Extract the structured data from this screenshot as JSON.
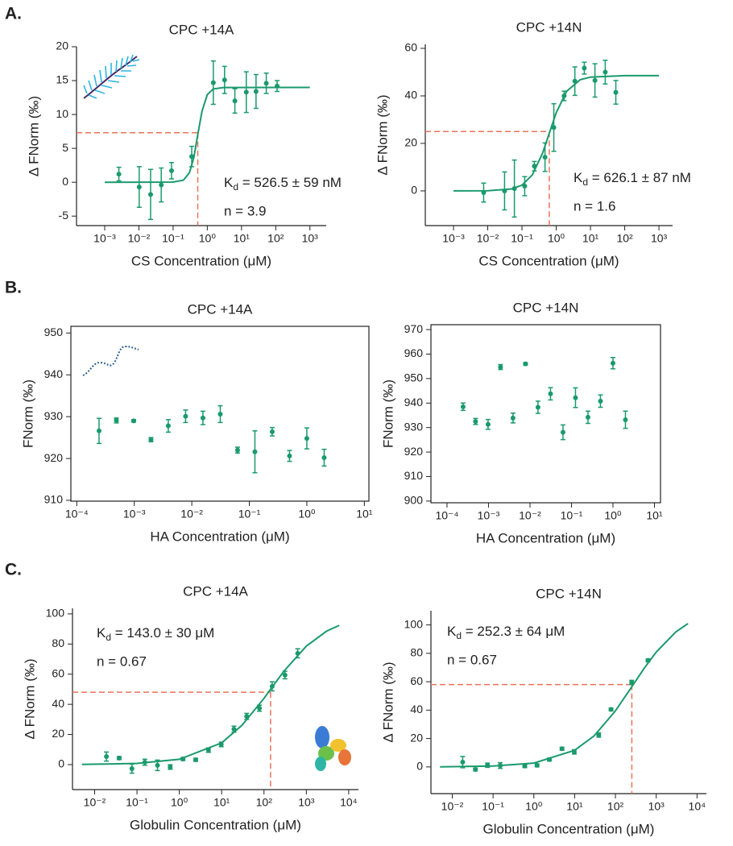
{
  "panel_labels": [
    "A.",
    "B.",
    "C."
  ],
  "chart_data": [
    {
      "type": "scatter",
      "title": "CPC +14A",
      "xlabel": "CS Concentration (μM)",
      "ylabel": "Δ FNorm (‰)",
      "color": "#1a9a6c",
      "log_x": true,
      "box": false,
      "x": [
        0.0026,
        0.0102,
        0.022,
        0.045,
        0.09,
        0.35,
        1.5,
        3.2,
        6.4,
        13.8,
        26.6,
        53,
        110
      ],
      "values": [
        1.2,
        -0.7,
        -1.8,
        -0.4,
        1.7,
        3.8,
        14.7,
        15.1,
        12,
        13.3,
        13.4,
        14.6,
        14.2
      ],
      "errors": [
        1,
        3,
        3.7,
        2.5,
        1.2,
        1.5,
        3.2,
        2,
        1.8,
        3,
        2.5,
        1.5,
        0.8
      ],
      "fit": {
        "color": "#1a9a6c",
        "x": [
          0.001,
          0.1,
          0.2,
          0.3,
          0.4,
          0.5265,
          0.7,
          1,
          1.5,
          3,
          1000
        ],
        "values": [
          0,
          0.02,
          0.31,
          1.41,
          3.57,
          7,
          10.5,
          12.94,
          13.77,
          13.98,
          14
        ]
      },
      "ref_x": 0.5265,
      "ref_y": 7.3,
      "ref_color": "#e8735a",
      "annotations": [
        {
          "text": "K",
          "sub": "d",
          "rest": " = 526.5 ± 59 nM"
        },
        "n = 3.9"
      ],
      "xlim": [
        0.00015,
        3000
      ],
      "ylim": [
        -6.4,
        20
      ],
      "xticks": [
        {
          "value": 0.001,
          "label": "10⁻³"
        },
        {
          "value": 0.01,
          "label": "10⁻²"
        },
        {
          "value": 0.1,
          "label": "10⁻¹"
        },
        {
          "value": 1,
          "label": "10⁰"
        },
        {
          "value": 10,
          "label": "10¹"
        },
        {
          "value": 100,
          "label": "10²"
        },
        {
          "value": 1000,
          "label": "10³"
        }
      ],
      "yticks": [
        -5,
        0,
        5,
        10,
        15,
        20
      ]
    },
    {
      "type": "scatter",
      "title": "CPC +14N",
      "xlabel": "CS Concentration (μM)",
      "ylabel": "Δ FNorm (‰)",
      "color": "#1a9a6c",
      "log_x": true,
      "box": false,
      "x": [
        0.0076,
        0.031,
        0.06,
        0.12,
        0.23,
        0.47,
        0.85,
        1.7,
        3.5,
        6.6,
        13.5,
        27,
        55
      ],
      "values": [
        -0.7,
        0,
        1,
        2,
        10.4,
        14.2,
        26.7,
        40,
        46.2,
        51.7,
        46.5,
        50,
        41.5
      ],
      "errors": [
        4,
        8,
        12,
        4,
        2,
        6,
        10,
        2,
        6,
        2.5,
        7,
        5,
        5
      ],
      "fit": {
        "color": "#1a9a6c",
        "x": [
          0.001,
          0.01,
          0.05,
          0.1,
          0.2,
          0.4,
          0.626,
          1,
          2,
          5,
          10,
          100,
          1000
        ],
        "values": [
          0,
          0.06,
          0.84,
          2.44,
          6.7,
          15.9,
          24.25,
          32.96,
          41.9,
          46.8,
          47.9,
          48.5,
          48.5
        ]
      },
      "ref_x": 0.626,
      "ref_y": 25,
      "ref_color": "#e8735a",
      "annotations": [
        {
          "text": "K",
          "sub": "d",
          "rest": " = 626.1 ± 87 nM"
        },
        "n = 1.6"
      ],
      "xlim": [
        0.00015,
        2500
      ],
      "ylim": [
        -14.6,
        61.7
      ],
      "xticks": [
        {
          "value": 0.001,
          "label": "10⁻³"
        },
        {
          "value": 0.01,
          "label": "10⁻²"
        },
        {
          "value": 0.1,
          "label": "10⁻¹"
        },
        {
          "value": 1,
          "label": "10⁰"
        },
        {
          "value": 10,
          "label": "10¹"
        },
        {
          "value": 100,
          "label": "10²"
        },
        {
          "value": 1000,
          "label": "10³"
        }
      ],
      "yticks": [
        0,
        20,
        40,
        60
      ]
    },
    {
      "type": "scatter",
      "title": "CPC +14A",
      "xlabel": "HA Concentration (μM)",
      "ylabel": "FNorm (‰)",
      "color": "#1a9a6c",
      "log_x": true,
      "box": true,
      "x": [
        0.000244,
        0.000488,
        0.000977,
        0.00195,
        0.0039,
        0.0078,
        0.0156,
        0.03125,
        0.0625,
        0.125,
        0.25,
        0.5,
        1,
        2
      ],
      "values": [
        926.6,
        929.1,
        929,
        924.5,
        927.8,
        930.1,
        929.7,
        930.6,
        922,
        921.6,
        926.4,
        920.6,
        924.8,
        920.2
      ],
      "errors": [
        3,
        0.6,
        0.3,
        0.5,
        1.5,
        1.5,
        1.6,
        2,
        0.7,
        5,
        1,
        1.3,
        2.5,
        2
      ],
      "xlim": [
        7.9e-05,
        12
      ],
      "ylim": [
        909.8,
        951.6
      ],
      "xticks": [
        {
          "value": 0.0001,
          "label": "10⁻⁴"
        },
        {
          "value": 0.001,
          "label": "10⁻³"
        },
        {
          "value": 0.01,
          "label": "10⁻²"
        },
        {
          "value": 0.1,
          "label": "10⁻¹"
        },
        {
          "value": 1,
          "label": "10⁰"
        },
        {
          "value": 10,
          "label": "10¹"
        }
      ],
      "yticks": [
        910,
        920,
        930,
        940,
        950
      ]
    },
    {
      "type": "scatter",
      "title": "CPC +14N",
      "xlabel": "HA Concentration (μM)",
      "ylabel": "FNorm (‰)",
      "color": "#1a9a6c",
      "log_x": true,
      "box": true,
      "x": [
        0.000244,
        0.000488,
        0.000977,
        0.00195,
        0.0039,
        0.0078,
        0.0156,
        0.03125,
        0.0625,
        0.125,
        0.25,
        0.5,
        1,
        2
      ],
      "values": [
        938.5,
        932.5,
        931.3,
        954.7,
        933.9,
        956,
        938.3,
        943.8,
        928.1,
        942.2,
        934.2,
        940.8,
        956.3,
        933.2
      ],
      "errors": [
        1.5,
        1.2,
        2,
        1,
        2,
        0.5,
        2.5,
        2.5,
        3,
        4,
        2.5,
        2.5,
        2.3,
        3.5
      ],
      "xlim": [
        4.1e-05,
        14
      ],
      "ylim": [
        899.3,
        972
      ],
      "xticks": [
        {
          "value": 0.0001,
          "label": "10⁻⁴"
        },
        {
          "value": 0.001,
          "label": "10⁻³"
        },
        {
          "value": 0.01,
          "label": "10⁻²"
        },
        {
          "value": 0.1,
          "label": "10⁻¹"
        },
        {
          "value": 1,
          "label": "10⁰"
        },
        {
          "value": 10,
          "label": "10¹"
        }
      ],
      "yticks": [
        900,
        910,
        920,
        930,
        940,
        950,
        960,
        970
      ]
    },
    {
      "type": "scatter",
      "title": "CPC +14A",
      "xlabel": "Globulin Concentration (μM)",
      "ylabel": "Δ FNorm (‰)",
      "color": "#1a9a6c",
      "log_x": true,
      "box": false,
      "x": [
        0.019,
        0.038,
        0.076,
        0.153,
        0.305,
        0.61,
        1.22,
        2.44,
        4.88,
        9.77,
        19.5,
        39,
        78,
        156,
        313,
        625
      ],
      "values": [
        5.3,
        4.3,
        -2.7,
        1.6,
        -0.5,
        -1.6,
        3.7,
        3.2,
        9.6,
        13.4,
        23.5,
        32,
        37.4,
        51.9,
        59.4,
        73.8
      ],
      "errors": [
        3,
        1,
        3,
        2,
        3.5,
        1.5,
        1,
        1,
        1.5,
        1.5,
        2,
        2,
        2,
        3,
        2.5,
        3
      ],
      "fit": {
        "color": "#1a9a6c",
        "x": [
          0.005,
          0.1,
          1,
          10,
          30,
          100,
          143,
          300,
          1000,
          3000,
          6000
        ],
        "values": [
          0.1,
          0.76,
          3.5,
          14.4,
          26,
          44,
          50,
          62.2,
          78.6,
          88.5,
          92.4
        ]
      },
      "ref_x": 143,
      "ref_y": 48,
      "ref_color": "#e8735a",
      "annotations": [
        {
          "text": "K",
          "sub": "d",
          "rest": " = 143.0 ± 30 μM"
        },
        "n = 0.67"
      ],
      "xlim": [
        0.003,
        17000
      ],
      "ylim": [
        -16.6,
        103.7
      ],
      "xticks": [
        {
          "value": 0.01,
          "label": "10⁻²"
        },
        {
          "value": 0.1,
          "label": "10⁻¹"
        },
        {
          "value": 1,
          "label": "10⁰"
        },
        {
          "value": 10,
          "label": "10¹"
        },
        {
          "value": 100,
          "label": "10²"
        },
        {
          "value": 1000,
          "label": "10³"
        },
        {
          "value": 10000,
          "label": "10⁴"
        }
      ],
      "yticks": [
        0,
        20,
        40,
        60,
        80,
        100
      ]
    },
    {
      "type": "scatter",
      "title": "CPC +14N",
      "xlabel": "Globulin Concentration (μM)",
      "ylabel": "Δ FNorm (‰)",
      "color": "#1a9a6c",
      "log_x": true,
      "box": false,
      "x": [
        0.018,
        0.037,
        0.073,
        0.15,
        0.6,
        1.2,
        2.4,
        4.9,
        9.8,
        39,
        78,
        250,
        630
      ],
      "values": [
        3.4,
        -1.8,
        1.2,
        1,
        0.6,
        1.1,
        5.2,
        12.8,
        10.6,
        22.5,
        40.5,
        59.5,
        75
      ],
      "errors": [
        4,
        1,
        1.5,
        2,
        1,
        1,
        1,
        1,
        1.5,
        1.5,
        1,
        1.5,
        1
      ],
      "fit": {
        "color": "#1a9a6c",
        "x": [
          0.005,
          0.1,
          1,
          10,
          30,
          100,
          252.3,
          500,
          1000,
          3000,
          6000
        ],
        "values": [
          0.08,
          0.6,
          2.7,
          11.7,
          21.9,
          39.5,
          56.5,
          69.2,
          80.9,
          95,
          101
        ]
      },
      "ref_x": 252.3,
      "ref_y": 58,
      "ref_color": "#e8735a",
      "annotations": [
        {
          "text": "K",
          "sub": "d",
          "rest": " = 252.3 ± 64 μM"
        },
        "n = 0.67"
      ],
      "xlim": [
        0.003,
        17000
      ],
      "ylim": [
        -18.8,
        110
      ],
      "xticks": [
        {
          "value": 0.01,
          "label": "10⁻²"
        },
        {
          "value": 0.1,
          "label": "10⁻¹"
        },
        {
          "value": 1,
          "label": "10⁰"
        },
        {
          "value": 10,
          "label": "10¹"
        },
        {
          "value": 100,
          "label": "10²"
        },
        {
          "value": 1000,
          "label": "10³"
        },
        {
          "value": 10000,
          "label": "10⁴"
        }
      ],
      "yticks": [
        0,
        20,
        40,
        60,
        80,
        100
      ]
    }
  ]
}
